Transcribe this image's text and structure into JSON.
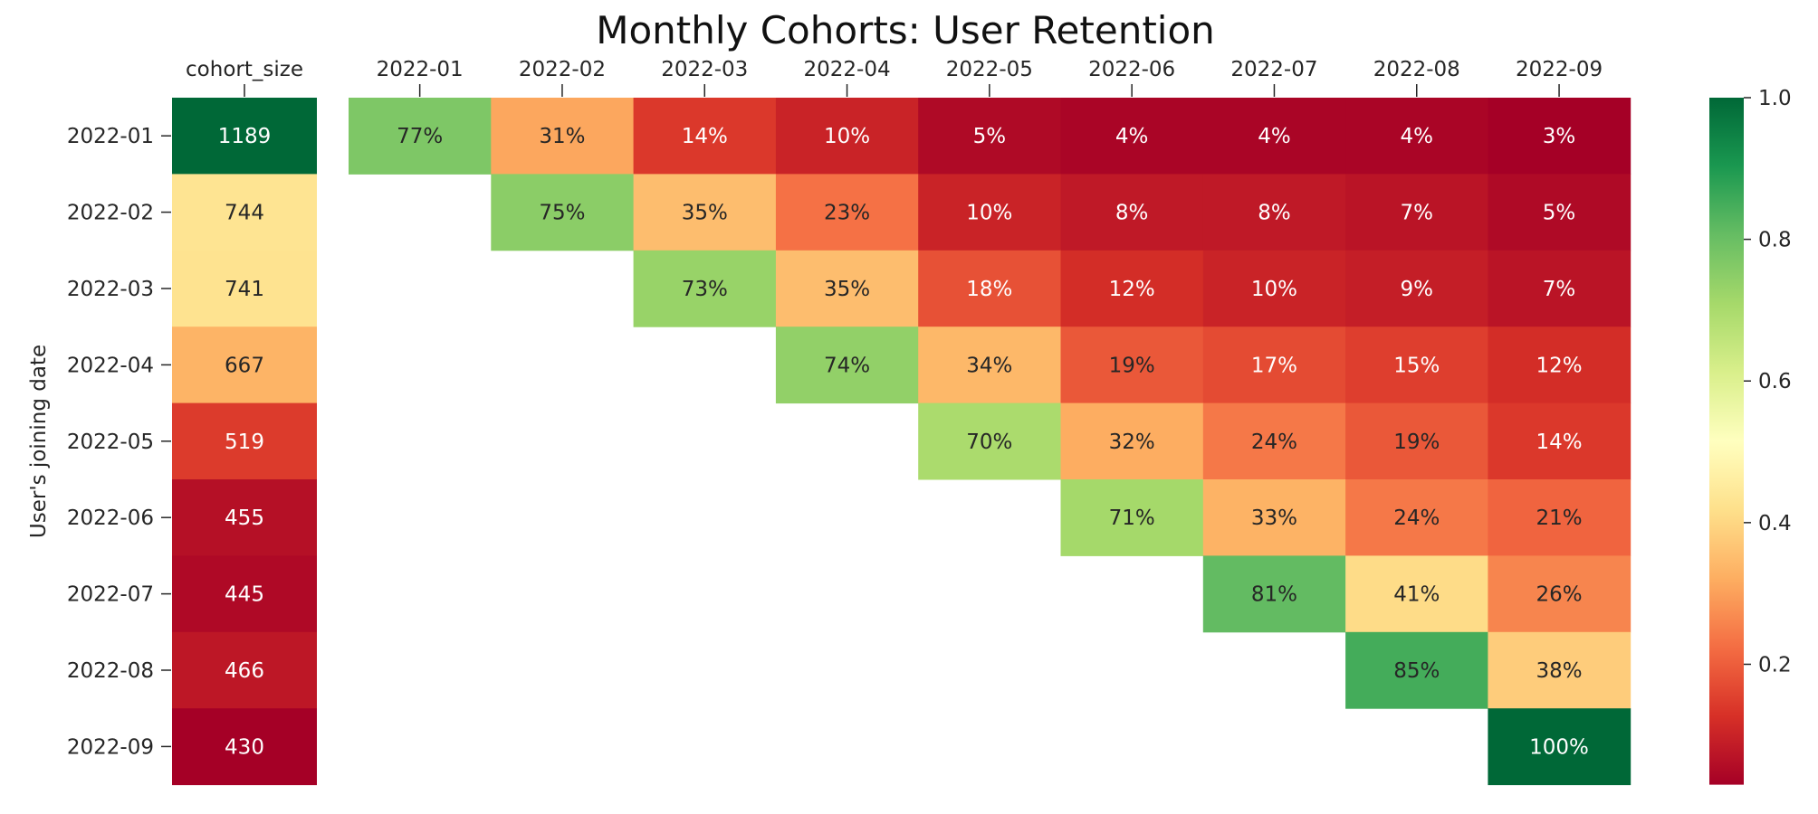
{
  "chart_data": {
    "type": "heatmap",
    "title": "Monthly Cohorts: User Retention",
    "ylabel": "User's joining date",
    "xlabel": "",
    "size_header": "cohort_size",
    "cohorts": [
      "2022-01",
      "2022-02",
      "2022-03",
      "2022-04",
      "2022-05",
      "2022-06",
      "2022-07",
      "2022-08",
      "2022-09"
    ],
    "periods": [
      "2022-01",
      "2022-02",
      "2022-03",
      "2022-04",
      "2022-05",
      "2022-06",
      "2022-07",
      "2022-08",
      "2022-09"
    ],
    "cohort_size": [
      1189,
      744,
      741,
      667,
      519,
      455,
      445,
      466,
      430
    ],
    "retention": [
      [
        0.77,
        0.31,
        0.14,
        0.1,
        0.05,
        0.04,
        0.04,
        0.04,
        0.03
      ],
      [
        null,
        0.75,
        0.35,
        0.23,
        0.1,
        0.08,
        0.08,
        0.07,
        0.05
      ],
      [
        null,
        null,
        0.73,
        0.35,
        0.18,
        0.12,
        0.1,
        0.09,
        0.07
      ],
      [
        null,
        null,
        null,
        0.74,
        0.34,
        0.19,
        0.17,
        0.15,
        0.12
      ],
      [
        null,
        null,
        null,
        null,
        0.7,
        0.32,
        0.24,
        0.19,
        0.14
      ],
      [
        null,
        null,
        null,
        null,
        null,
        0.71,
        0.33,
        0.24,
        0.21
      ],
      [
        null,
        null,
        null,
        null,
        null,
        null,
        0.81,
        0.41,
        0.26
      ],
      [
        null,
        null,
        null,
        null,
        null,
        null,
        null,
        0.85,
        0.38
      ],
      [
        null,
        null,
        null,
        null,
        null,
        null,
        null,
        null,
        1.0
      ]
    ],
    "retention_labels": [
      [
        "77%",
        "31%",
        "14%",
        "10%",
        "5%",
        "4%",
        "4%",
        "4%",
        "3%"
      ],
      [
        null,
        "75%",
        "35%",
        "23%",
        "10%",
        "8%",
        "8%",
        "7%",
        "5%"
      ],
      [
        null,
        null,
        "73%",
        "35%",
        "18%",
        "12%",
        "10%",
        "9%",
        "7%"
      ],
      [
        null,
        null,
        null,
        "74%",
        "34%",
        "19%",
        "17%",
        "15%",
        "12%"
      ],
      [
        null,
        null,
        null,
        null,
        "70%",
        "32%",
        "24%",
        "19%",
        "14%"
      ],
      [
        null,
        null,
        null,
        null,
        null,
        "71%",
        "33%",
        "24%",
        "21%"
      ],
      [
        null,
        null,
        null,
        null,
        null,
        null,
        "81%",
        "41%",
        "26%"
      ],
      [
        null,
        null,
        null,
        null,
        null,
        null,
        null,
        "85%",
        "38%"
      ],
      [
        null,
        null,
        null,
        null,
        null,
        null,
        null,
        null,
        "100%"
      ]
    ],
    "colormap": "RdYlGn",
    "colorbar": {
      "range": [
        0.03,
        1.0
      ],
      "ticks": [
        0.2,
        0.4,
        0.6,
        0.8,
        1.0
      ],
      "tick_labels": [
        "0.2",
        "0.4",
        "0.6",
        "0.8",
        "1.0"
      ]
    }
  }
}
